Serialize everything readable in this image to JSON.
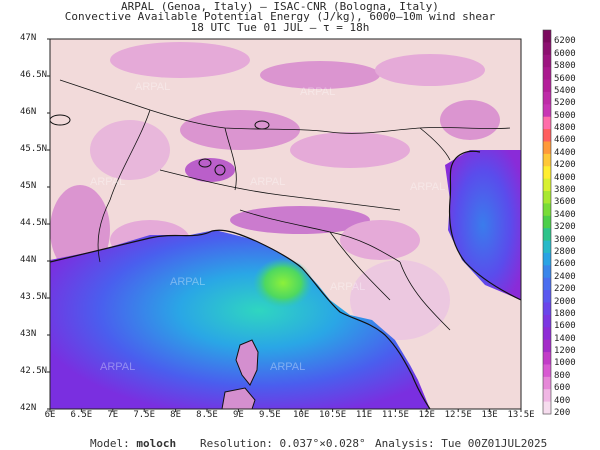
{
  "header": {
    "line1": "ARPAL (Genoa, Italy)  —  ISAC-CNR (Bologna, Italy)",
    "line2": "Convective Available Potential Energy (J/kg), 6000–10m wind shear",
    "line3": "18 UTC Tue 01 JUL  —  τ = 18h"
  },
  "map": {
    "lat_labels": [
      "47N",
      "46.5N",
      "46N",
      "45.5N",
      "45N",
      "44.5N",
      "44N",
      "43.5N",
      "43N",
      "42.5N",
      "42N"
    ],
    "lon_labels": [
      "6E",
      "6.5E",
      "7E",
      "7.5E",
      "8E",
      "8.5E",
      "9E",
      "9.5E",
      "10E",
      "10.5E",
      "11E",
      "11.5E",
      "12E",
      "12.5E",
      "13E",
      "13.5E"
    ],
    "watermark": "ARPAL",
    "colors": {
      "land": "#f4dede",
      "sea_low": "#8a2be2",
      "sea_high": "#27d3b5",
      "peak": "#7ae83a"
    }
  },
  "colorbar": {
    "labels": [
      "6200",
      "6000",
      "5800",
      "5600",
      "5400",
      "5200",
      "5000",
      "4800",
      "4600",
      "4400",
      "4200",
      "4000",
      "3800",
      "3600",
      "3400",
      "3200",
      "3000",
      "2800",
      "2600",
      "2400",
      "2200",
      "2000",
      "1800",
      "1600",
      "1400",
      "1200",
      "1000",
      "800",
      "600",
      "400",
      "200"
    ],
    "colors": [
      "#7b0a5e",
      "#8c1070",
      "#9c1580",
      "#aa1a8e",
      "#b41f9a",
      "#be2ca8",
      "#c836b5",
      "#ff6eaa",
      "#ff5f5f",
      "#ff9a3a",
      "#ffc838",
      "#ffee30",
      "#d8f030",
      "#a8e830",
      "#78dc38",
      "#4ccf4a",
      "#2ec38a",
      "#28b9c8",
      "#2aa3e4",
      "#3a86ea",
      "#4a6eef",
      "#5a58ef",
      "#6a45ea",
      "#7c36e2",
      "#8e2cd6",
      "#a42cc8",
      "#c23cc8",
      "#d85ad2",
      "#e688d8",
      "#f0b6e4",
      "#f6dcee"
    ]
  },
  "footer": {
    "model_label": "Model:",
    "model_value": "moloch",
    "resolution": "Resolution: 0.037°×0.028°",
    "analysis": "Analysis: Tue 00Z01JUL2025"
  }
}
